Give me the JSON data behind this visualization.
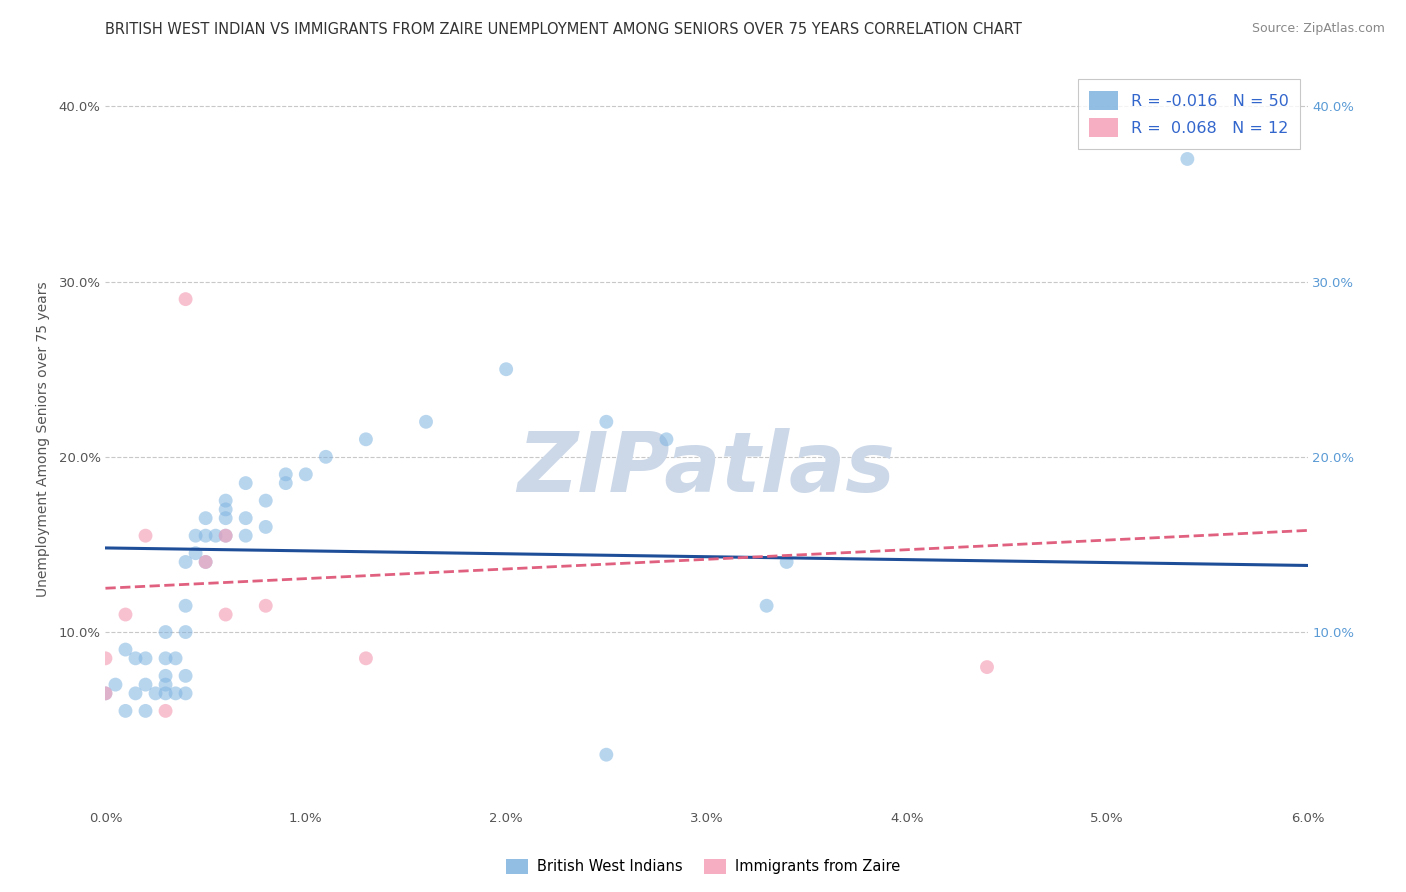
{
  "title": "BRITISH WEST INDIAN VS IMMIGRANTS FROM ZAIRE UNEMPLOYMENT AMONG SENIORS OVER 75 YEARS CORRELATION CHART",
  "source": "Source: ZipAtlas.com",
  "ylabel": "Unemployment Among Seniors over 75 years",
  "xlim": [
    0.0,
    0.06
  ],
  "ylim": [
    0.0,
    0.42
  ],
  "x_ticks": [
    0.0,
    0.01,
    0.02,
    0.03,
    0.04,
    0.05,
    0.06
  ],
  "x_tick_labels": [
    "0.0%",
    "1.0%",
    "2.0%",
    "3.0%",
    "4.0%",
    "5.0%",
    "6.0%"
  ],
  "y_ticks": [
    0.0,
    0.1,
    0.2,
    0.3,
    0.4
  ],
  "y_tick_labels": [
    "",
    "10.0%",
    "20.0%",
    "30.0%",
    "40.0%"
  ],
  "right_y_tick_labels": [
    "10.0%",
    "20.0%",
    "30.0%",
    "40.0%"
  ],
  "blue_scatter_x": [
    0.0005,
    0.001,
    0.001,
    0.0015,
    0.0015,
    0.002,
    0.002,
    0.002,
    0.0025,
    0.003,
    0.003,
    0.003,
    0.003,
    0.003,
    0.0035,
    0.0035,
    0.004,
    0.004,
    0.004,
    0.004,
    0.004,
    0.0045,
    0.0045,
    0.005,
    0.005,
    0.005,
    0.0055,
    0.006,
    0.006,
    0.006,
    0.006,
    0.007,
    0.007,
    0.007,
    0.008,
    0.008,
    0.009,
    0.009,
    0.01,
    0.011,
    0.013,
    0.016,
    0.02,
    0.025,
    0.028,
    0.033,
    0.034,
    0.025,
    0.054,
    0.0
  ],
  "blue_scatter_y": [
    0.07,
    0.055,
    0.09,
    0.065,
    0.085,
    0.055,
    0.07,
    0.085,
    0.065,
    0.065,
    0.07,
    0.075,
    0.085,
    0.1,
    0.065,
    0.085,
    0.065,
    0.075,
    0.1,
    0.115,
    0.14,
    0.145,
    0.155,
    0.14,
    0.155,
    0.165,
    0.155,
    0.155,
    0.165,
    0.17,
    0.175,
    0.155,
    0.165,
    0.185,
    0.16,
    0.175,
    0.185,
    0.19,
    0.19,
    0.2,
    0.21,
    0.22,
    0.25,
    0.22,
    0.21,
    0.115,
    0.14,
    0.03,
    0.37,
    0.065
  ],
  "pink_scatter_x": [
    0.0,
    0.0,
    0.001,
    0.002,
    0.003,
    0.004,
    0.005,
    0.006,
    0.006,
    0.008,
    0.013,
    0.044
  ],
  "pink_scatter_y": [
    0.065,
    0.085,
    0.11,
    0.155,
    0.055,
    0.29,
    0.14,
    0.11,
    0.155,
    0.115,
    0.085,
    0.08
  ],
  "blue_line_x": [
    0.0,
    0.06
  ],
  "blue_line_y": [
    0.148,
    0.138
  ],
  "pink_line_x": [
    0.0,
    0.06
  ],
  "pink_line_y": [
    0.125,
    0.158
  ],
  "blue_color": "#7fb3e0",
  "pink_color": "#f4a0b8",
  "blue_line_color": "#1f4e99",
  "pink_line_color": "#e06080",
  "scatter_alpha": 0.55,
  "scatter_size": 100,
  "grid_color": "#c8c8c8",
  "background_color": "#ffffff",
  "watermark": "ZIPatlas",
  "watermark_color": "#ccd8e8",
  "title_fontsize": 10.5,
  "axis_label_fontsize": 10,
  "tick_fontsize": 9.5,
  "source_fontsize": 9,
  "legend_r1": "R = -0.016",
  "legend_n1": "N = 50",
  "legend_r2": "R =  0.068",
  "legend_n2": "N = 12"
}
